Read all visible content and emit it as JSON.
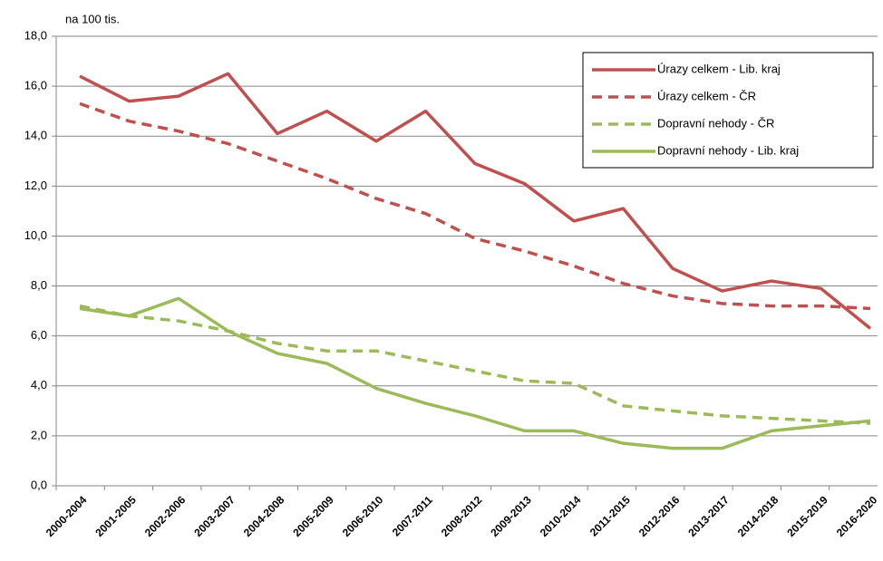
{
  "chart_data": {
    "type": "line",
    "y_label": "na 100 tis.",
    "categories": [
      "2000-2004",
      "2001-2005",
      "2002-2006",
      "2003-2007",
      "2004-2008",
      "2005-2009",
      "2006-2010",
      "2007-2011",
      "2008-2012",
      "2009-2013",
      "2010-2014",
      "2011-2015",
      "2012-2016",
      "2013-2017",
      "2014-2018",
      "2015-2019",
      "2016-2020"
    ],
    "series": [
      {
        "name": "Úrazy celkem - Lib. kraj",
        "color": "#c0504d",
        "dashed": false,
        "values": [
          16.4,
          15.4,
          15.6,
          16.5,
          14.1,
          15.0,
          13.8,
          15.0,
          12.9,
          12.1,
          10.6,
          11.1,
          8.7,
          7.8,
          8.2,
          7.9,
          6.3
        ]
      },
      {
        "name": "Úrazy celkem - ČR",
        "color": "#c0504d",
        "dashed": true,
        "values": [
          15.3,
          14.6,
          14.2,
          13.7,
          13.0,
          12.3,
          11.5,
          10.9,
          9.9,
          9.4,
          8.8,
          8.1,
          7.6,
          7.3,
          7.2,
          7.2,
          7.1
        ]
      },
      {
        "name": "Dopravní nehody - ČR",
        "color": "#9bbb59",
        "dashed": true,
        "values": [
          7.2,
          6.8,
          6.6,
          6.2,
          5.7,
          5.4,
          5.4,
          5.0,
          4.6,
          4.2,
          4.1,
          3.2,
          3.0,
          2.8,
          2.7,
          2.6,
          2.5
        ]
      },
      {
        "name": "Dopravní nehody - Lib. kraj",
        "color": "#9bbb59",
        "dashed": false,
        "values": [
          7.1,
          6.8,
          7.5,
          6.2,
          5.3,
          4.9,
          3.9,
          3.3,
          2.8,
          2.2,
          2.2,
          1.7,
          1.5,
          1.5,
          2.2,
          2.4,
          2.6
        ]
      }
    ],
    "ylim": [
      0,
      18
    ],
    "yticks": [
      {
        "value": 0,
        "label": "0,0"
      },
      {
        "value": 2,
        "label": "2,0"
      },
      {
        "value": 4,
        "label": "4,0"
      },
      {
        "value": 6,
        "label": "6,0"
      },
      {
        "value": 8,
        "label": "8,0"
      },
      {
        "value": 10,
        "label": "10,0"
      },
      {
        "value": 12,
        "label": "12,0"
      },
      {
        "value": 14,
        "label": "14,0"
      },
      {
        "value": 16,
        "label": "16,0"
      },
      {
        "value": 18,
        "label": "18,0"
      }
    ],
    "grid": true,
    "legend": "top-right"
  }
}
